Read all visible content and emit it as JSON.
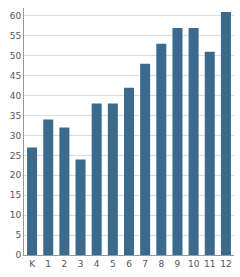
{
  "chart_data": {
    "type": "bar",
    "categories": [
      "K",
      "1",
      "2",
      "3",
      "4",
      "5",
      "6",
      "7",
      "8",
      "9",
      "10",
      "11",
      "12"
    ],
    "values": [
      27,
      34,
      32,
      24,
      38,
      38,
      42,
      48,
      53,
      57,
      57,
      51,
      61
    ],
    "color": "#3b6a8c",
    "ylim": [
      0,
      62
    ],
    "yticks": [
      0,
      5,
      10,
      15,
      20,
      25,
      30,
      35,
      40,
      45,
      50,
      55,
      60
    ],
    "grid": true
  }
}
